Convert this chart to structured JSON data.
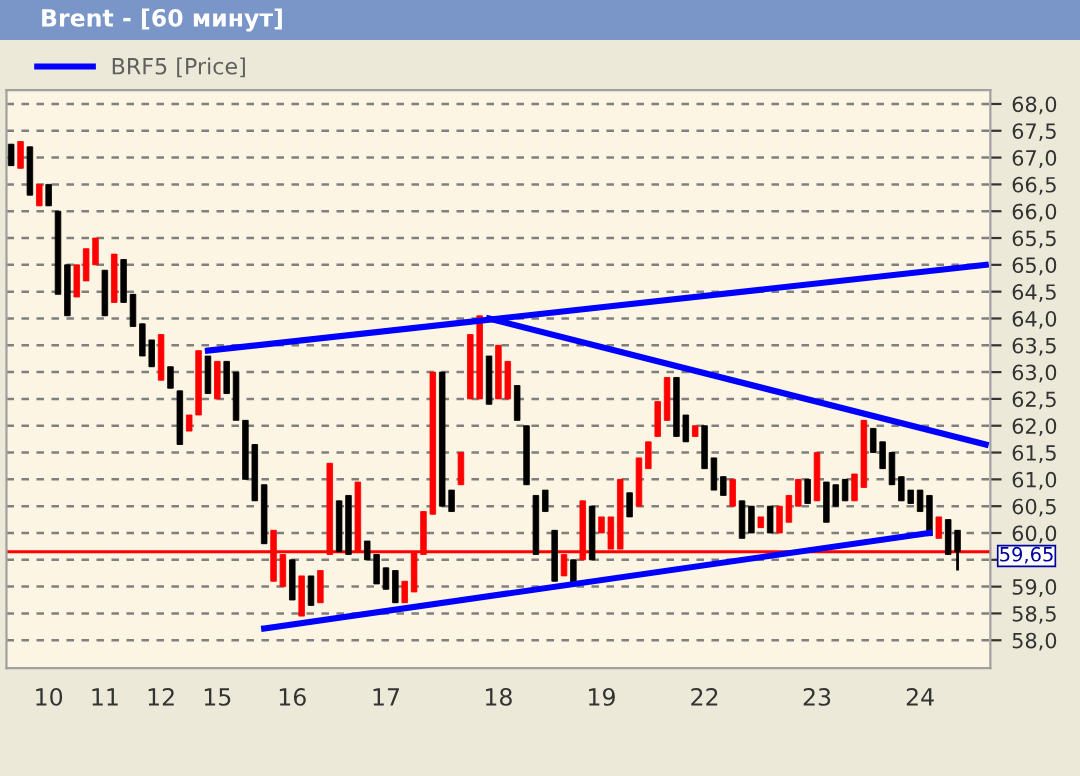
{
  "chart_data": {
    "type": "candlestick",
    "title": "Brent - [60 минут]",
    "categories": [
      null,
      null,
      null,
      null,
      "10",
      null,
      null,
      null,
      null,
      null,
      "11",
      null,
      null,
      null,
      null,
      null,
      "12",
      null,
      null,
      null,
      null,
      null,
      "15",
      null,
      null,
      null,
      null,
      null,
      null,
      null,
      "16",
      null,
      null,
      null,
      null,
      null,
      null,
      null,
      null,
      null,
      "17",
      null,
      null,
      null,
      null,
      null,
      null,
      null,
      null,
      null,
      null,
      null,
      "18",
      null,
      null,
      null,
      null,
      null,
      null,
      null,
      null,
      null,
      null,
      "19",
      null,
      null,
      null,
      null,
      null,
      null,
      null,
      null,
      null,
      null,
      "22",
      null,
      null,
      null,
      null,
      null,
      null,
      null,
      null,
      null,
      null,
      null,
      "23",
      null,
      null,
      null,
      null,
      null,
      null,
      null,
      null,
      null,
      null,
      "24",
      null,
      null,
      null,
      null,
      null,
      null,
      null
    ],
    "ohlc": [
      [
        67.25,
        67.25,
        66.85,
        66.85
      ],
      [
        66.8,
        67.3,
        66.8,
        67.3
      ],
      [
        67.2,
        67.2,
        66.3,
        66.3
      ],
      [
        66.1,
        66.5,
        66.1,
        66.5
      ],
      [
        66.5,
        66.5,
        66.1,
        66.1
      ],
      [
        66.0,
        66.0,
        64.45,
        64.45
      ],
      [
        65.0,
        65.0,
        64.05,
        64.05
      ],
      [
        64.4,
        65.0,
        64.4,
        65.0
      ],
      [
        64.7,
        65.3,
        64.7,
        65.3
      ],
      [
        65.0,
        65.5,
        65.0,
        65.5
      ],
      [
        64.9,
        64.9,
        64.05,
        64.05
      ],
      [
        64.3,
        65.2,
        64.3,
        65.2
      ],
      [
        65.1,
        65.1,
        64.3,
        64.3
      ],
      [
        64.45,
        64.45,
        63.85,
        63.85
      ],
      [
        63.9,
        63.9,
        63.3,
        63.3
      ],
      [
        63.6,
        63.6,
        63.1,
        63.1
      ],
      [
        62.85,
        63.7,
        62.85,
        63.7
      ],
      [
        63.1,
        63.1,
        62.7,
        62.7
      ],
      [
        62.65,
        62.65,
        61.65,
        61.65
      ],
      [
        61.9,
        62.2,
        61.9,
        62.2
      ],
      [
        62.2,
        63.4,
        62.2,
        63.4
      ],
      [
        63.3,
        63.3,
        62.6,
        62.6
      ],
      [
        62.5,
        63.2,
        62.5,
        63.2
      ],
      [
        63.2,
        63.2,
        62.6,
        62.6
      ],
      [
        63.0,
        63.0,
        62.1,
        62.1
      ],
      [
        62.1,
        62.1,
        61.0,
        61.0
      ],
      [
        61.65,
        61.65,
        60.6,
        60.6
      ],
      [
        60.9,
        60.9,
        59.8,
        59.8
      ],
      [
        59.1,
        60.05,
        59.1,
        60.05
      ],
      [
        59.0,
        59.6,
        59.0,
        59.6
      ],
      [
        59.5,
        59.5,
        58.75,
        58.75
      ],
      [
        58.45,
        59.2,
        58.45,
        59.2
      ],
      [
        59.2,
        59.2,
        58.65,
        58.65
      ],
      [
        58.7,
        59.3,
        58.7,
        59.3
      ],
      [
        59.6,
        61.3,
        59.6,
        61.3
      ],
      [
        60.6,
        60.6,
        59.65,
        59.65
      ],
      [
        60.7,
        60.7,
        59.6,
        59.6
      ],
      [
        59.65,
        60.95,
        59.65,
        60.95
      ],
      [
        59.85,
        59.85,
        59.5,
        59.5
      ],
      [
        59.6,
        59.6,
        59.05,
        59.05
      ],
      [
        59.35,
        59.35,
        58.95,
        58.95
      ],
      [
        59.3,
        59.3,
        58.7,
        58.7
      ],
      [
        58.7,
        59.1,
        58.7,
        59.1
      ],
      [
        58.9,
        59.65,
        58.9,
        59.65
      ],
      [
        59.6,
        60.4,
        59.6,
        60.4
      ],
      [
        60.35,
        63.0,
        60.35,
        63.0
      ],
      [
        63.0,
        63.0,
        60.5,
        60.5
      ],
      [
        60.8,
        60.8,
        60.4,
        60.4
      ],
      [
        60.9,
        61.5,
        60.9,
        61.5
      ],
      [
        62.5,
        63.7,
        62.5,
        63.7
      ],
      [
        62.5,
        64.05,
        62.5,
        64.05
      ],
      [
        63.3,
        63.3,
        62.4,
        62.4
      ],
      [
        62.5,
        63.5,
        62.5,
        63.5
      ],
      [
        62.5,
        63.2,
        62.5,
        63.2
      ],
      [
        62.75,
        62.75,
        62.1,
        62.1
      ],
      [
        62.0,
        62.0,
        60.9,
        60.9
      ],
      [
        60.7,
        60.7,
        59.6,
        59.6
      ],
      [
        60.8,
        60.8,
        60.4,
        60.4
      ],
      [
        60.05,
        60.05,
        59.1,
        59.1
      ],
      [
        59.2,
        59.6,
        59.2,
        59.6
      ],
      [
        59.5,
        59.5,
        59.05,
        59.05
      ],
      [
        59.5,
        60.6,
        59.5,
        60.6
      ],
      [
        60.5,
        60.5,
        59.5,
        59.5
      ],
      [
        60.0,
        60.3,
        60.0,
        60.3
      ],
      [
        59.7,
        60.3,
        59.7,
        60.3
      ],
      [
        59.7,
        61.0,
        59.7,
        61.0
      ],
      [
        60.75,
        60.75,
        60.3,
        60.3
      ],
      [
        60.5,
        61.4,
        60.5,
        61.4
      ],
      [
        61.2,
        61.7,
        61.2,
        61.7
      ],
      [
        61.8,
        62.45,
        61.8,
        62.45
      ],
      [
        62.1,
        62.9,
        62.1,
        62.9
      ],
      [
        62.9,
        62.9,
        61.8,
        61.8
      ],
      [
        62.2,
        62.2,
        61.7,
        61.7
      ],
      [
        61.8,
        62.0,
        61.8,
        62.0
      ],
      [
        62.0,
        62.0,
        61.2,
        61.2
      ],
      [
        61.4,
        61.4,
        60.8,
        60.8
      ],
      [
        61.05,
        61.05,
        60.7,
        60.7
      ],
      [
        60.5,
        61.0,
        60.5,
        61.0
      ],
      [
        60.6,
        60.6,
        59.9,
        59.9
      ],
      [
        60.5,
        60.5,
        60.0,
        60.0
      ],
      [
        60.1,
        60.3,
        60.1,
        60.3
      ],
      [
        60.5,
        60.5,
        60.0,
        60.0
      ],
      [
        60.0,
        60.5,
        60.0,
        60.5
      ],
      [
        60.2,
        60.7,
        60.2,
        60.7
      ],
      [
        60.5,
        61.0,
        60.5,
        61.0
      ],
      [
        61.0,
        61.0,
        60.55,
        60.55
      ],
      [
        60.6,
        61.5,
        60.6,
        61.5
      ],
      [
        60.95,
        60.95,
        60.2,
        60.2
      ],
      [
        60.9,
        60.9,
        60.5,
        60.5
      ],
      [
        61.0,
        61.0,
        60.6,
        60.6
      ],
      [
        60.6,
        61.1,
        60.6,
        61.1
      ],
      [
        60.85,
        62.1,
        60.85,
        62.1
      ],
      [
        61.95,
        61.95,
        61.5,
        61.5
      ],
      [
        61.7,
        61.7,
        61.2,
        61.2
      ],
      [
        61.5,
        61.5,
        60.9,
        60.9
      ],
      [
        61.05,
        61.05,
        60.6,
        60.6
      ],
      [
        60.8,
        60.8,
        60.55,
        60.55
      ],
      [
        60.8,
        60.8,
        60.4,
        60.4
      ],
      [
        60.7,
        60.7,
        59.95,
        59.95
      ],
      [
        59.9,
        60.3,
        59.9,
        60.3
      ],
      [
        60.25,
        60.25,
        59.6,
        59.6
      ],
      [
        60.05,
        60.05,
        59.3,
        59.65
      ],
      null,
      null,
      null
    ],
    "colors": [
      "#000000",
      "#ff0000",
      "#000000",
      "#ff0000",
      "#000000",
      "#000000",
      "#000000",
      "#ff0000",
      "#ff0000",
      "#ff0000",
      "#000000",
      "#ff0000",
      "#000000",
      "#000000",
      "#000000",
      "#000000",
      "#ff0000",
      "#000000",
      "#000000",
      "#ff0000",
      "#ff0000",
      "#000000",
      "#ff0000",
      "#000000",
      "#000000",
      "#000000",
      "#000000",
      "#000000",
      "#ff0000",
      "#ff0000",
      "#000000",
      "#ff0000",
      "#000000",
      "#ff0000",
      "#ff0000",
      "#000000",
      "#000000",
      "#ff0000",
      "#000000",
      "#000000",
      "#000000",
      "#000000",
      "#ff0000",
      "#ff0000",
      "#ff0000",
      "#ff0000",
      "#000000",
      "#000000",
      "#ff0000",
      "#ff0000",
      "#ff0000",
      "#000000",
      "#ff0000",
      "#ff0000",
      "#000000",
      "#000000",
      "#000000",
      "#000000",
      "#000000",
      "#ff0000",
      "#000000",
      "#ff0000",
      "#000000",
      "#ff0000",
      "#ff0000",
      "#ff0000",
      "#000000",
      "#ff0000",
      "#ff0000",
      "#ff0000",
      "#ff0000",
      "#000000",
      "#000000",
      "#ff0000",
      "#000000",
      "#000000",
      "#000000",
      "#ff0000",
      "#000000",
      "#000000",
      "#ff0000",
      "#000000",
      "#ff0000",
      "#ff0000",
      "#ff0000",
      "#000000",
      "#ff0000",
      "#000000",
      "#000000",
      "#000000",
      "#ff0000",
      "#ff0000",
      "#000000",
      "#000000",
      "#000000",
      "#000000",
      "#000000",
      "#000000",
      "#000000",
      "#ff0000",
      "#000000",
      "#000000",
      null,
      null,
      null
    ],
    "series": [
      {
        "name": "BRF5 [Price]",
        "type": "line",
        "color": "#0000ff",
        "values": [
          null,
          null,
          null,
          null,
          null,
          null,
          null,
          null,
          null,
          null,
          null,
          null,
          null,
          null,
          null,
          null,
          null,
          null,
          null,
          null,
          null,
          63.4,
          null,
          null,
          null,
          null,
          null,
          null,
          null,
          null,
          null,
          null,
          null,
          null,
          null,
          null,
          null,
          null,
          null,
          null,
          null,
          null,
          null,
          null,
          null,
          null,
          null,
          null,
          null,
          null,
          null,
          null,
          null,
          null,
          null,
          null,
          null,
          null,
          null,
          null,
          null,
          null,
          null,
          null,
          null,
          null,
          null,
          null,
          null,
          null,
          null,
          null,
          null,
          null,
          null,
          null,
          null,
          null,
          null,
          null,
          null,
          null,
          null,
          null,
          null,
          null,
          null,
          null,
          null,
          null,
          null,
          null,
          null,
          null,
          null,
          null,
          null,
          null,
          null,
          null,
          null,
          null,
          null,
          null,
          65.0
        ]
      },
      {
        "type": "line",
        "color": "#0000ff",
        "values": [
          null,
          null,
          null,
          null,
          null,
          null,
          null,
          null,
          null,
          null,
          null,
          null,
          null,
          null,
          null,
          null,
          null,
          null,
          null,
          null,
          null,
          null,
          null,
          null,
          null,
          null,
          null,
          null,
          null,
          null,
          null,
          null,
          null,
          null,
          null,
          null,
          null,
          null,
          null,
          null,
          null,
          null,
          null,
          null,
          null,
          null,
          null,
          null,
          null,
          null,
          null,
          64.0,
          null,
          null,
          null,
          null,
          null,
          null,
          null,
          null,
          null,
          null,
          null,
          null,
          null,
          null,
          null,
          null,
          null,
          null,
          null,
          null,
          null,
          null,
          null,
          null,
          null,
          null,
          null,
          null,
          null,
          null,
          null,
          null,
          null,
          null,
          null,
          null,
          null,
          null,
          null,
          null,
          null,
          null,
          null,
          null,
          null,
          null,
          null,
          null,
          null,
          null,
          null,
          null,
          61.65
        ]
      },
      {
        "type": "line",
        "color": "#0000ff",
        "values": [
          null,
          null,
          null,
          null,
          null,
          null,
          null,
          null,
          null,
          null,
          null,
          null,
          null,
          null,
          null,
          null,
          null,
          null,
          null,
          null,
          null,
          null,
          null,
          null,
          null,
          null,
          null,
          58.22,
          null,
          null,
          null,
          null,
          null,
          null,
          null,
          null,
          null,
          null,
          null,
          null,
          null,
          null,
          null,
          null,
          null,
          null,
          null,
          null,
          null,
          null,
          null,
          null,
          null,
          null,
          null,
          null,
          null,
          null,
          null,
          null,
          null,
          null,
          null,
          null,
          null,
          null,
          null,
          null,
          null,
          null,
          null,
          null,
          null,
          null,
          null,
          null,
          null,
          null,
          null,
          null,
          null,
          null,
          null,
          null,
          null,
          null,
          null,
          null,
          null,
          null,
          null,
          null,
          null,
          null,
          null,
          null,
          null,
          null,
          60.0,
          null,
          null,
          null,
          null,
          null,
          null
        ]
      }
    ],
    "ref_lines": [
      {
        "axis": "y",
        "value": 59.65,
        "label": "59,65",
        "color": "#ff0000"
      }
    ],
    "ylim": [
      57.48,
      68.26
    ],
    "yticks": [
      {
        "value": 58.0,
        "label": "58,0"
      },
      {
        "value": 58.5,
        "label": "58,5"
      },
      {
        "value": 59.0,
        "label": "59,0"
      },
      {
        "value": 59.5,
        "label": null
      },
      {
        "value": 60.0,
        "label": "60,0"
      },
      {
        "value": 60.5,
        "label": "60,5"
      },
      {
        "value": 61.0,
        "label": "61,0"
      },
      {
        "value": 61.5,
        "label": "61,5"
      },
      {
        "value": 62.0,
        "label": "62,0"
      },
      {
        "value": 62.5,
        "label": "62,5"
      },
      {
        "value": 63.0,
        "label": "63,0"
      },
      {
        "value": 63.5,
        "label": "63,5"
      },
      {
        "value": 64.0,
        "label": "64,0"
      },
      {
        "value": 64.5,
        "label": "64,5"
      },
      {
        "value": 65.0,
        "label": "65,0"
      },
      {
        "value": 65.5,
        "label": "65,5"
      },
      {
        "value": 66.0,
        "label": "66,0"
      },
      {
        "value": 66.5,
        "label": "66,5"
      },
      {
        "value": 67.0,
        "label": "67,0"
      },
      {
        "value": 67.5,
        "label": "67,5"
      },
      {
        "value": 68.0,
        "label": "68,0"
      }
    ],
    "grid": "y",
    "legend": "top left"
  }
}
